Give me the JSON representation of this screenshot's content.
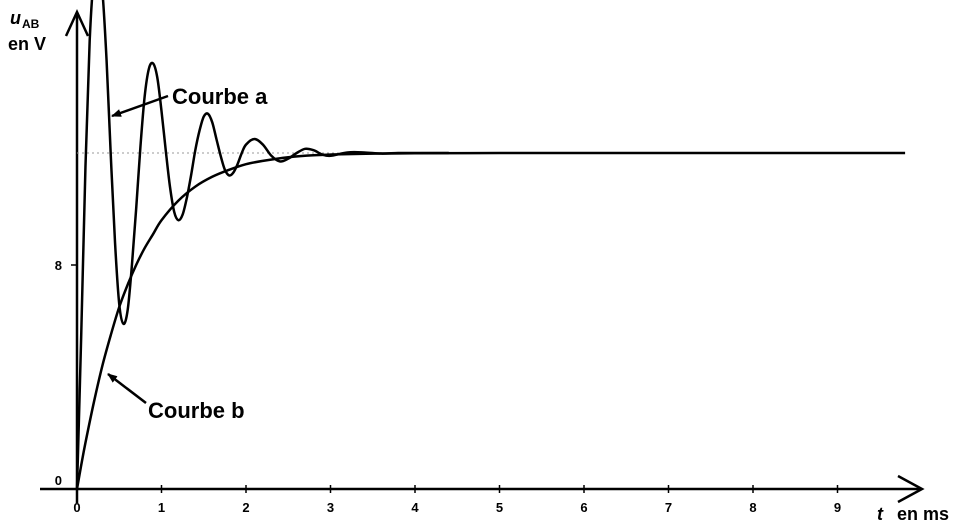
{
  "chart_data": {
    "type": "line",
    "y_axis": {
      "symbol": "u",
      "subscript": "AB",
      "unit_label": "en V"
    },
    "x_axis": {
      "symbol": "t",
      "unit_label": "en ms"
    },
    "xlim": [
      0,
      9.8
    ],
    "ylim": [
      0,
      19.5
    ],
    "x_ticks": [
      "0",
      "1",
      "2",
      "3",
      "4",
      "5",
      "6",
      "7",
      "8",
      "9"
    ],
    "y_ticks": [
      "0",
      "8"
    ],
    "asymptote": 12,
    "series": [
      {
        "name": "Courbe a",
        "x": [
          0,
          0.05,
          0.1,
          0.15,
          0.2,
          0.25,
          0.3,
          0.35,
          0.4,
          0.45,
          0.5,
          0.55,
          0.6,
          0.65,
          0.7,
          0.75,
          0.8,
          0.85,
          0.9,
          0.95,
          1.0,
          1.05,
          1.1,
          1.15,
          1.2,
          1.25,
          1.3,
          1.35,
          1.4,
          1.45,
          1.5,
          1.55,
          1.6,
          1.65,
          1.7,
          1.75,
          1.8,
          1.85,
          1.9,
          1.95,
          2.0,
          2.1,
          2.2,
          2.3,
          2.4,
          2.5,
          2.6,
          2.7,
          2.8,
          2.9,
          3.0,
          3.2,
          3.4,
          3.6,
          3.8,
          4.0,
          4.2,
          4.4
        ],
        "y": [
          0,
          5.5,
          11.5,
          16.0,
          18.3,
          18.9,
          17.8,
          15.3,
          11.9,
          8.8,
          6.6,
          5.9,
          6.4,
          8.0,
          10.0,
          12.2,
          14.0,
          15.0,
          15.2,
          14.7,
          13.5,
          12.1,
          10.8,
          9.9,
          9.6,
          9.8,
          10.4,
          11.2,
          12.1,
          12.8,
          13.3,
          13.4,
          13.1,
          12.5,
          11.9,
          11.4,
          11.2,
          11.3,
          11.6,
          12.0,
          12.3,
          12.5,
          12.3,
          11.9,
          11.7,
          11.8,
          12.0,
          12.15,
          12.1,
          11.95,
          11.9,
          12.02,
          12.02,
          11.98,
          12.0,
          12.0,
          12.0,
          12.0
        ]
      },
      {
        "name": "Courbe b",
        "x": [
          0,
          0.05,
          0.1,
          0.2,
          0.3,
          0.4,
          0.5,
          0.6,
          0.7,
          0.8,
          0.9,
          1.0,
          1.2,
          1.4,
          1.6,
          1.8,
          2.0,
          2.2,
          2.5,
          2.8,
          3.2,
          3.6,
          4.0,
          5.0,
          6.0,
          7.0,
          8.0,
          9.0,
          9.8
        ],
        "y": [
          0,
          0.85,
          1.65,
          3.1,
          4.4,
          5.5,
          6.5,
          7.3,
          8.0,
          8.6,
          9.1,
          9.6,
          10.3,
          10.8,
          11.15,
          11.4,
          11.6,
          11.72,
          11.85,
          11.92,
          11.96,
          11.98,
          11.99,
          12.0,
          12.0,
          12.0,
          12.0,
          12.0,
          12.0
        ]
      }
    ]
  }
}
